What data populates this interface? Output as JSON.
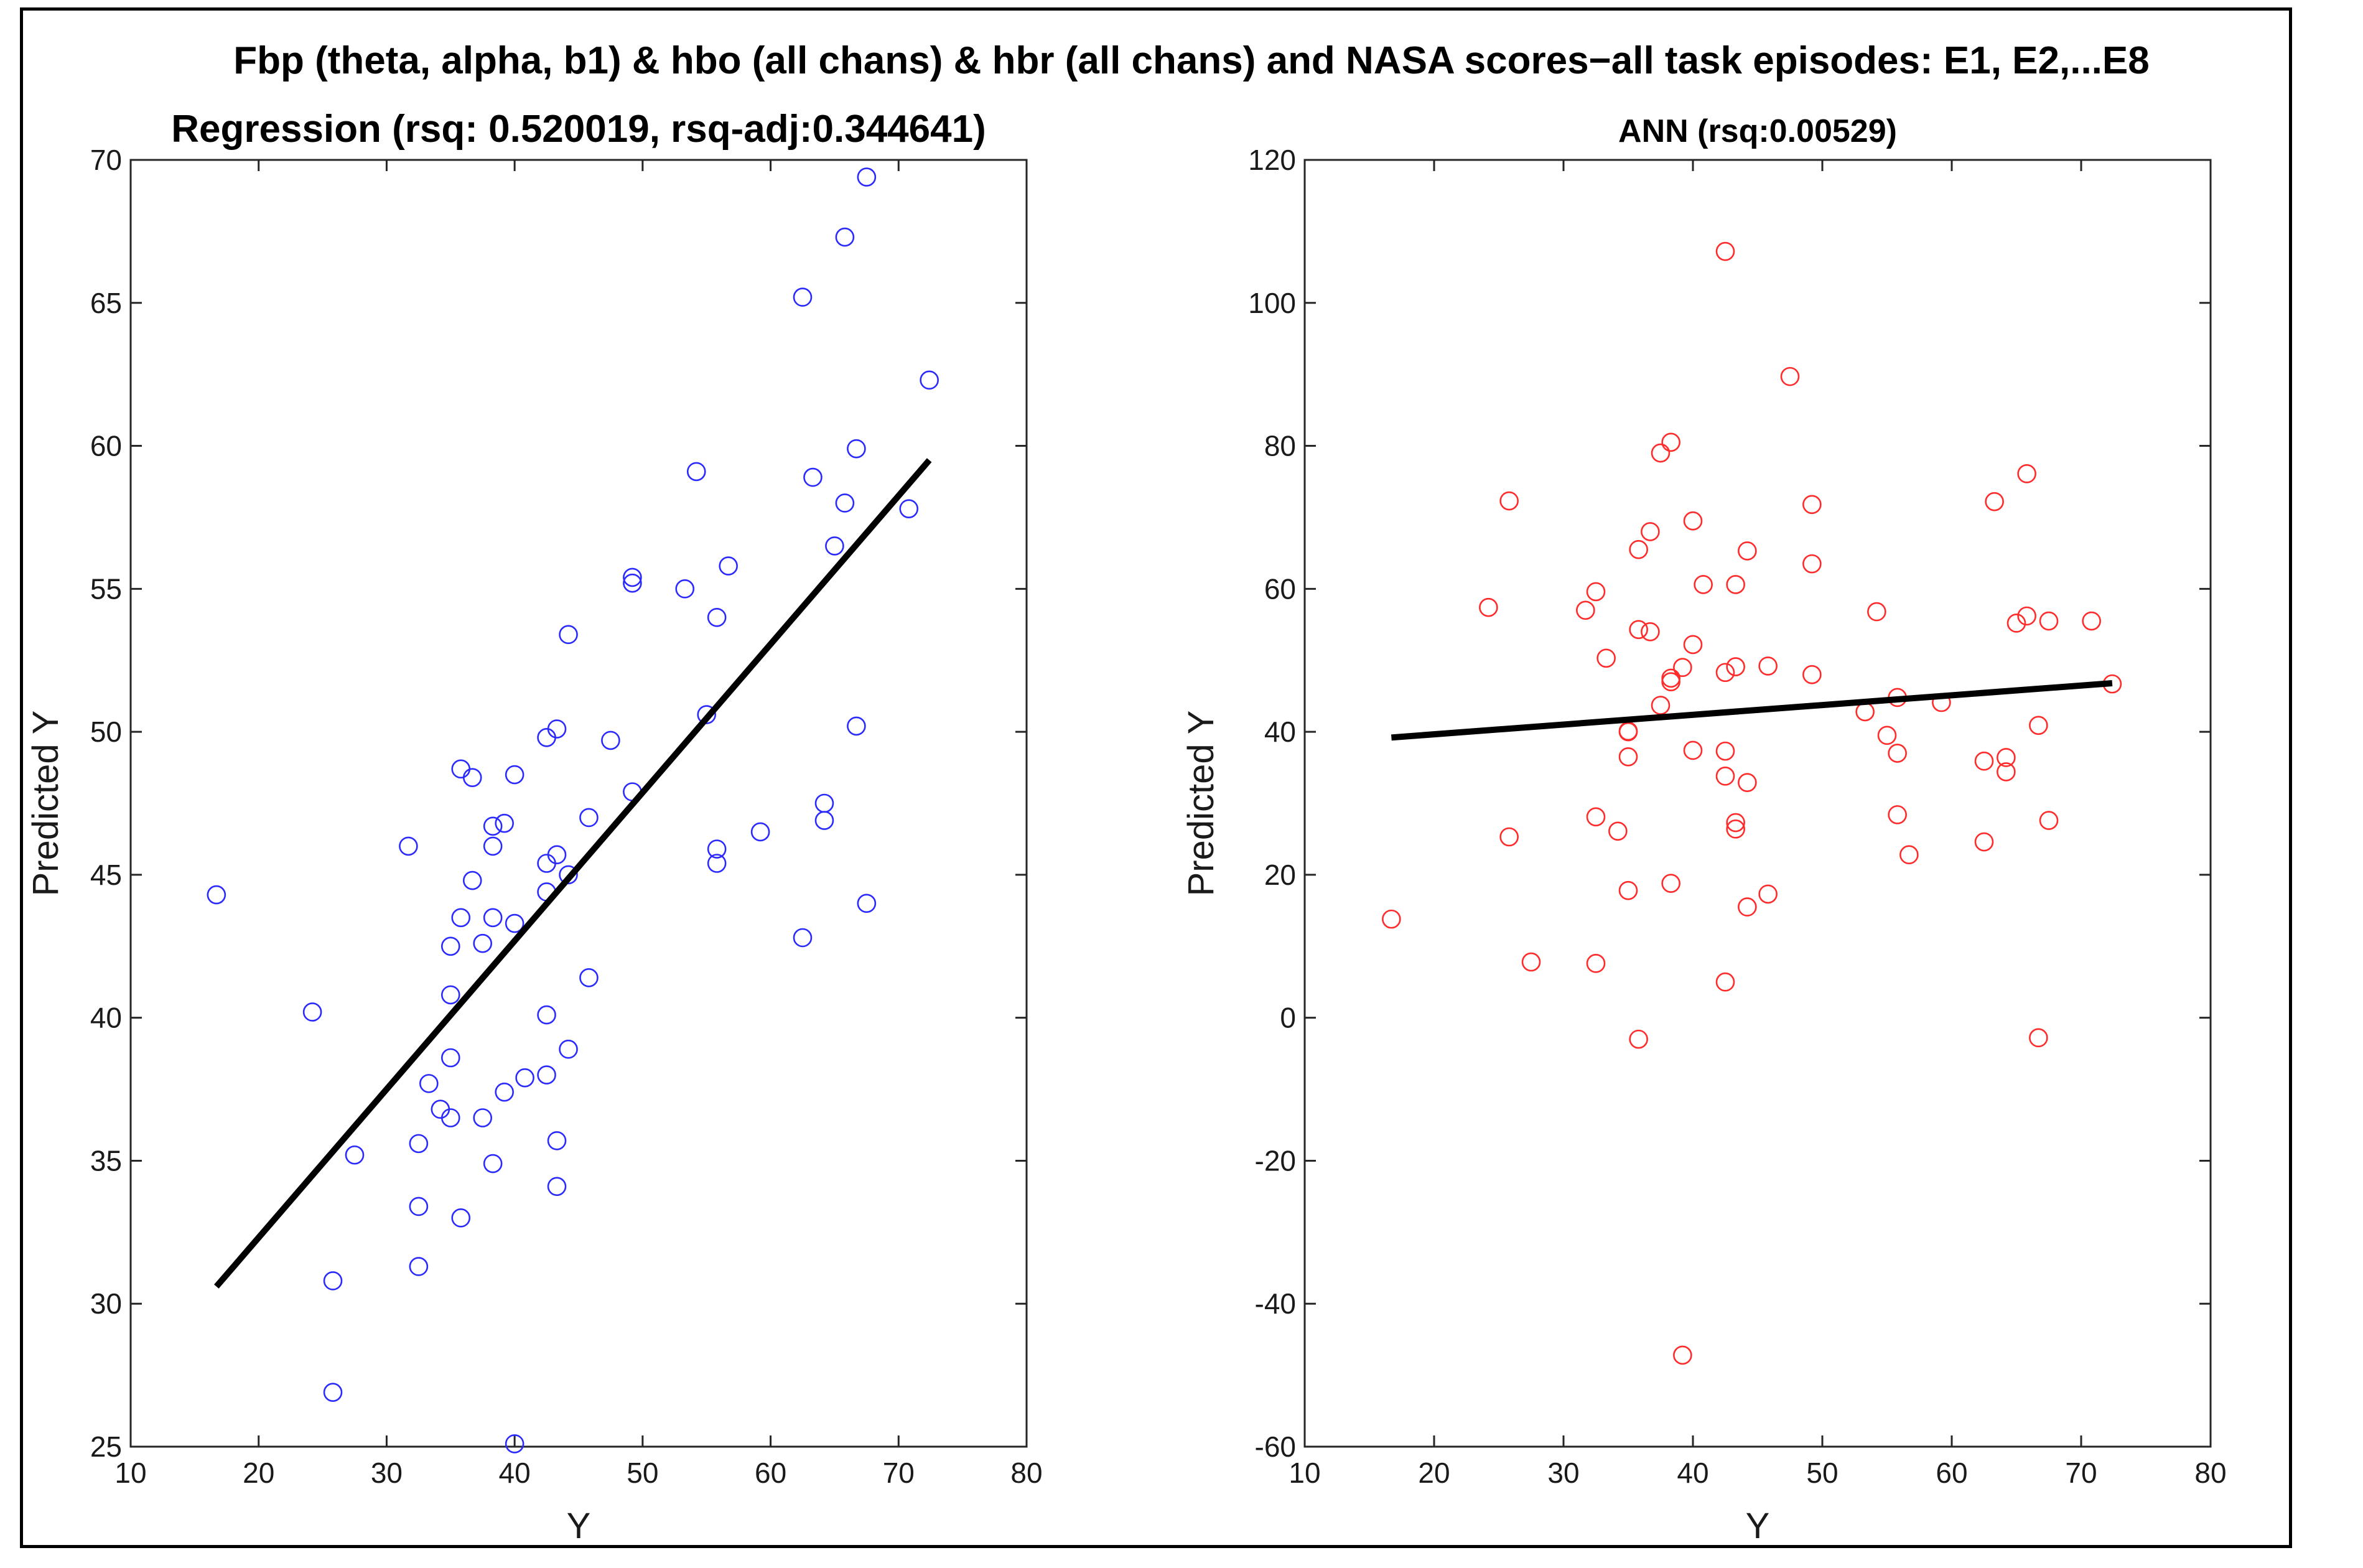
{
  "suptitle": "Fbp (theta, alpha, b1) & hbo (all chans) & hbr (all chans) and NASA scores−all task episodes: E1, E2,...E8",
  "chart_data": [
    {
      "type": "scatter",
      "title": "Regression (rsq: 0.520019, rsq-adj:0.344641)",
      "xlabel": "Y",
      "ylabel": "Predicted Y",
      "xlim": [
        10,
        80
      ],
      "ylim": [
        25,
        70
      ],
      "xticks": [
        10,
        20,
        30,
        40,
        50,
        60,
        70,
        80
      ],
      "yticks": [
        25,
        30,
        35,
        40,
        45,
        50,
        55,
        60,
        65,
        70
      ],
      "marker_color": "#2a2aff",
      "fit_line": {
        "x": [
          16.7,
          72.4
        ],
        "y": [
          30.6,
          59.5
        ],
        "color": "#000000"
      },
      "points": [
        [
          16.7,
          44.3
        ],
        [
          24.2,
          40.2
        ],
        [
          25.8,
          30.8
        ],
        [
          25.8,
          26.9
        ],
        [
          27.5,
          35.2
        ],
        [
          31.7,
          46.0
        ],
        [
          32.5,
          35.6
        ],
        [
          32.5,
          33.4
        ],
        [
          32.5,
          31.3
        ],
        [
          33.3,
          37.7
        ],
        [
          34.2,
          36.8
        ],
        [
          35.0,
          42.5
        ],
        [
          35.0,
          40.8
        ],
        [
          35.0,
          38.6
        ],
        [
          35.0,
          36.5
        ],
        [
          35.8,
          48.7
        ],
        [
          35.8,
          43.5
        ],
        [
          35.8,
          33.0
        ],
        [
          36.7,
          48.4
        ],
        [
          36.7,
          44.8
        ],
        [
          37.5,
          42.6
        ],
        [
          37.5,
          36.5
        ],
        [
          38.3,
          46.7
        ],
        [
          38.3,
          46.0
        ],
        [
          38.3,
          43.5
        ],
        [
          38.3,
          34.9
        ],
        [
          39.2,
          46.8
        ],
        [
          39.2,
          37.4
        ],
        [
          40.0,
          48.5
        ],
        [
          40.0,
          43.3
        ],
        [
          40.0,
          25.1
        ],
        [
          40.8,
          37.9
        ],
        [
          42.5,
          49.8
        ],
        [
          42.5,
          45.4
        ],
        [
          42.5,
          44.4
        ],
        [
          42.5,
          40.1
        ],
        [
          42.5,
          38.0
        ],
        [
          43.3,
          50.1
        ],
        [
          43.3,
          45.7
        ],
        [
          43.3,
          35.7
        ],
        [
          43.3,
          34.1
        ],
        [
          44.2,
          53.4
        ],
        [
          44.2,
          45.0
        ],
        [
          44.2,
          38.9
        ],
        [
          45.8,
          47.0
        ],
        [
          45.8,
          41.4
        ],
        [
          47.5,
          49.7
        ],
        [
          49.2,
          55.4
        ],
        [
          49.2,
          55.2
        ],
        [
          49.2,
          47.9
        ],
        [
          53.3,
          55.0
        ],
        [
          54.2,
          59.1
        ],
        [
          55.0,
          50.6
        ],
        [
          55.8,
          54.0
        ],
        [
          55.8,
          45.9
        ],
        [
          55.8,
          45.4
        ],
        [
          56.7,
          55.8
        ],
        [
          59.2,
          46.5
        ],
        [
          62.5,
          65.2
        ],
        [
          62.5,
          42.8
        ],
        [
          63.3,
          58.9
        ],
        [
          64.2,
          47.5
        ],
        [
          64.2,
          46.9
        ],
        [
          65.0,
          56.5
        ],
        [
          65.8,
          67.3
        ],
        [
          65.8,
          58.0
        ],
        [
          66.7,
          59.9
        ],
        [
          66.7,
          50.2
        ],
        [
          67.5,
          69.4
        ],
        [
          67.5,
          44.0
        ],
        [
          70.8,
          57.8
        ],
        [
          72.4,
          62.3
        ]
      ]
    },
    {
      "type": "scatter",
      "title": "ANN (rsq:0.00529)",
      "xlabel": "Y",
      "ylabel": "Predicted Y",
      "xlim": [
        10,
        80
      ],
      "ylim": [
        -60,
        120
      ],
      "xticks": [
        10,
        20,
        30,
        40,
        50,
        60,
        70,
        80
      ],
      "yticks": [
        -60,
        -40,
        -20,
        0,
        20,
        40,
        60,
        80,
        100,
        120
      ],
      "marker_color": "#ff2a2a",
      "fit_line": {
        "x": [
          16.7,
          72.4
        ],
        "y": [
          39.2,
          46.8
        ],
        "color": "#000000"
      },
      "points": [
        [
          16.7,
          13.8
        ],
        [
          24.2,
          57.4
        ],
        [
          25.8,
          72.3
        ],
        [
          25.8,
          25.3
        ],
        [
          27.5,
          7.8
        ],
        [
          31.7,
          57.0
        ],
        [
          32.5,
          59.6
        ],
        [
          32.5,
          28.1
        ],
        [
          32.5,
          7.6
        ],
        [
          33.3,
          50.3
        ],
        [
          34.2,
          26.1
        ],
        [
          35.0,
          40.0
        ],
        [
          35.0,
          40.1
        ],
        [
          35.0,
          36.5
        ],
        [
          35.0,
          17.8
        ],
        [
          35.8,
          65.5
        ],
        [
          35.8,
          54.3
        ],
        [
          35.8,
          -3.0
        ],
        [
          36.7,
          68.0
        ],
        [
          36.7,
          54.0
        ],
        [
          37.5,
          79.0
        ],
        [
          37.5,
          43.7
        ],
        [
          38.3,
          80.5
        ],
        [
          38.3,
          47.5
        ],
        [
          38.3,
          47.0
        ],
        [
          38.3,
          18.8
        ],
        [
          39.2,
          49.0
        ],
        [
          39.2,
          -47.2
        ],
        [
          40.0,
          69.5
        ],
        [
          40.0,
          52.2
        ],
        [
          40.0,
          37.4
        ],
        [
          40.8,
          60.6
        ],
        [
          42.5,
          107.2
        ],
        [
          42.5,
          48.3
        ],
        [
          42.5,
          37.3
        ],
        [
          42.5,
          33.8
        ],
        [
          42.5,
          5.0
        ],
        [
          43.3,
          60.6
        ],
        [
          43.3,
          49.1
        ],
        [
          43.3,
          27.3
        ],
        [
          43.3,
          26.4
        ],
        [
          44.2,
          65.3
        ],
        [
          44.2,
          32.9
        ],
        [
          44.2,
          15.5
        ],
        [
          45.8,
          49.2
        ],
        [
          45.8,
          17.3
        ],
        [
          47.5,
          89.7
        ],
        [
          49.2,
          71.8
        ],
        [
          49.2,
          63.5
        ],
        [
          49.2,
          48.0
        ],
        [
          53.3,
          42.8
        ],
        [
          54.2,
          56.8
        ],
        [
          55.0,
          39.5
        ],
        [
          55.8,
          44.8
        ],
        [
          55.8,
          37.0
        ],
        [
          55.8,
          28.4
        ],
        [
          56.7,
          22.8
        ],
        [
          59.2,
          44.1
        ],
        [
          62.5,
          35.9
        ],
        [
          62.5,
          24.6
        ],
        [
          63.3,
          72.2
        ],
        [
          64.2,
          36.4
        ],
        [
          64.2,
          34.4
        ],
        [
          65.0,
          55.2
        ],
        [
          65.8,
          76.1
        ],
        [
          65.8,
          56.2
        ],
        [
          66.7,
          40.9
        ],
        [
          66.7,
          -2.8
        ],
        [
          67.5,
          55.5
        ],
        [
          67.5,
          27.6
        ],
        [
          70.8,
          55.5
        ],
        [
          72.4,
          46.7
        ]
      ]
    }
  ]
}
